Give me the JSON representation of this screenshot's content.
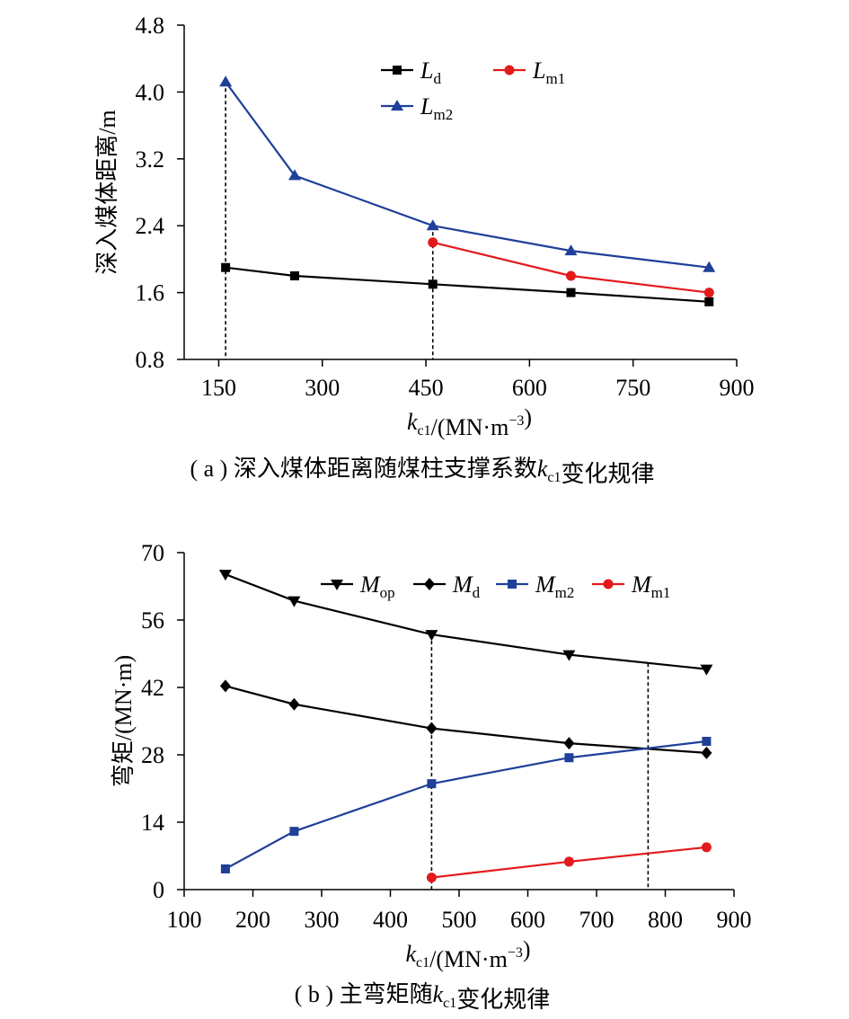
{
  "chart_data": [
    {
      "type": "line",
      "caption": "( a ) 深入煤体距离随煤柱支撑系数k_c1变化规律",
      "xlabel": "k_c1/(MN·m^-3)",
      "ylabel": "深入煤体距离/m",
      "xlim": [
        100,
        900
      ],
      "xticks": [
        "150",
        "300",
        "450",
        "600",
        "750",
        "900"
      ],
      "ylim": [
        0.8,
        4.8
      ],
      "yticks": [
        "0.8",
        "1.6",
        "2.4",
        "3.2",
        "4.0",
        "4.8"
      ],
      "legend_position": "top-right",
      "series": [
        {
          "name": "Ld",
          "name_main": "L",
          "name_sub": "d",
          "color": "#000000",
          "marker": "square",
          "x": [
            160,
            260,
            460,
            660,
            860
          ],
          "y": [
            1.9,
            1.8,
            1.7,
            1.6,
            1.49
          ]
        },
        {
          "name": "Lm1",
          "name_main": "L",
          "name_sub": "m1",
          "color": "#e31a1c",
          "marker": "circle",
          "x": [
            460,
            660,
            860
          ],
          "y": [
            2.2,
            1.8,
            1.6
          ]
        },
        {
          "name": "Lm2",
          "name_main": "L",
          "name_sub": "m2",
          "color": "#1f3f99",
          "marker": "triangle-up",
          "x": [
            160,
            260,
            460,
            660,
            860
          ],
          "y": [
            4.12,
            3.0,
            2.4,
            2.1,
            1.9
          ]
        }
      ],
      "guides": [
        {
          "x": 160,
          "y_to": 4.12
        },
        {
          "x": 460,
          "y_to": 2.4
        }
      ]
    },
    {
      "type": "line",
      "caption": "( b ) 主弯矩随k_c1变化规律",
      "xlabel": "k_c1/(MN·m^-3)",
      "ylabel": "弯矩/(MN·m)",
      "xlim": [
        100,
        900
      ],
      "xticks": [
        "100",
        "200",
        "300",
        "400",
        "500",
        "600",
        "700",
        "800",
        "900"
      ],
      "ylim": [
        0,
        70
      ],
      "yticks": [
        "0",
        "14",
        "28",
        "42",
        "56",
        "70"
      ],
      "legend_position": "top",
      "series": [
        {
          "name": "Mop",
          "name_main": "M",
          "name_sub": "op",
          "color": "#000000",
          "marker": "triangle-down",
          "x": [
            160,
            260,
            460,
            660,
            860
          ],
          "y": [
            65.5,
            60.0,
            53.0,
            48.8,
            45.8
          ]
        },
        {
          "name": "Md",
          "name_main": "M",
          "name_sub": "d",
          "color": "#000000",
          "marker": "diamond",
          "x": [
            160,
            260,
            460,
            660,
            860
          ],
          "y": [
            42.3,
            38.5,
            33.5,
            30.4,
            28.4
          ]
        },
        {
          "name": "Mm2",
          "name_main": "M",
          "name_sub": "m2",
          "color": "#1f3f99",
          "marker": "square",
          "x": [
            160,
            260,
            460,
            660,
            860
          ],
          "y": [
            4.3,
            12.1,
            22.0,
            27.4,
            30.8
          ]
        },
        {
          "name": "Mm1",
          "name_main": "M",
          "name_sub": "m1",
          "color": "#e31a1c",
          "marker": "circle",
          "x": [
            460,
            660,
            860
          ],
          "y": [
            2.5,
            5.8,
            8.8
          ]
        }
      ],
      "guides": [
        {
          "x": 460,
          "y_to": 53.0
        },
        {
          "x": 775,
          "y_to": 47.0
        }
      ]
    }
  ]
}
